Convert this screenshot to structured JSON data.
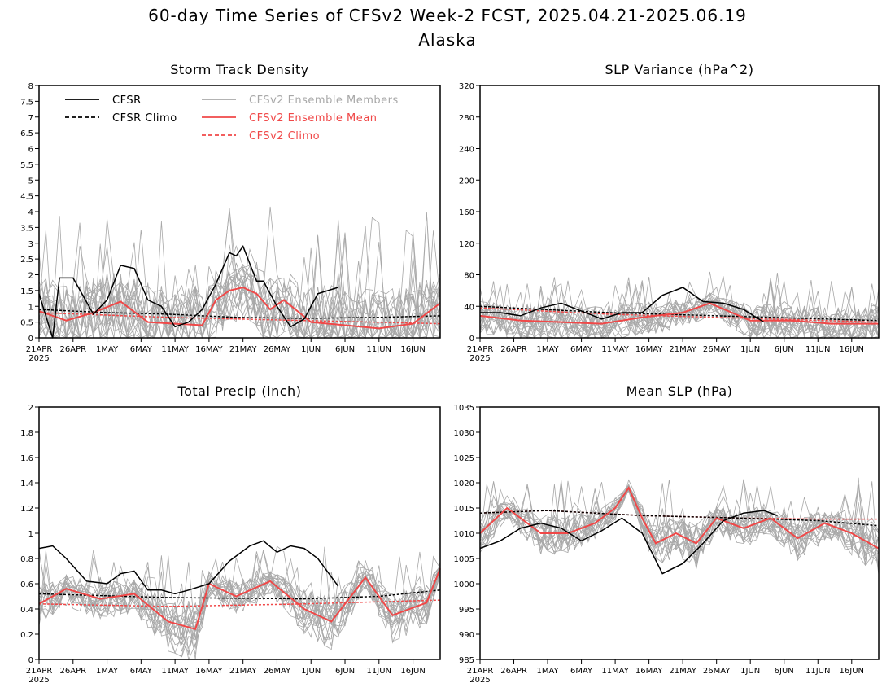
{
  "title": "60-day Time Series of CFSv2 Week-2 FCST, 2025.04.21-2025.06.19",
  "subtitle": "Alaska",
  "colors": {
    "cfsr": "#000000",
    "members": "#a8a8a8",
    "ens_mean": "#f04848",
    "cfsv2_climo": "#f04848"
  },
  "legend": {
    "cfsr": "CFSR",
    "cfsr_climo": "CFSR Climo",
    "members": "CFSv2 Ensemble Members",
    "ens_mean": "CFSv2 Ensemble Mean",
    "cfsv2_climo": "CFSv2 Climo"
  },
  "x_tick_labels": [
    "21APR",
    "26APR",
    "1MAY",
    "6MAY",
    "11MAY",
    "16MAY",
    "21MAY",
    "26MAY",
    "1JUN",
    "6JUN",
    "11JUN",
    "16JUN"
  ],
  "x_year_label": "2025",
  "chart_data": [
    {
      "type": "line",
      "title": "Storm Track Density",
      "ylim": [
        0,
        8
      ],
      "yticks": [
        "0",
        "0.5",
        "1",
        "1.5",
        "2",
        "2.5",
        "3",
        "3.5",
        "4",
        "4.5",
        "5",
        "5.5",
        "6",
        "6.5",
        "7",
        "7.5",
        "8"
      ],
      "x": [
        "04-21",
        "04-23",
        "04-24",
        "04-26",
        "04-29",
        "05-01",
        "05-03",
        "05-05",
        "05-07",
        "05-09",
        "05-11",
        "05-13",
        "05-15",
        "05-17",
        "05-18",
        "05-19",
        "05-20",
        "05-21",
        "05-23",
        "05-24",
        "05-26",
        "05-28",
        "05-30",
        "06-01",
        "06-04"
      ],
      "cfsr": [
        1.4,
        0.0,
        1.9,
        1.9,
        0.75,
        1.2,
        2.3,
        2.2,
        1.2,
        1.0,
        0.35,
        0.5,
        0.9,
        1.7,
        2.2,
        2.7,
        2.6,
        2.9,
        1.8,
        1.8,
        1.0,
        0.35,
        0.6,
        1.4,
        1.6
      ],
      "cfsr_climo": {
        "x": [
          "04-21",
          "05-01",
          "05-10",
          "05-20",
          "05-30",
          "06-10",
          "06-19"
        ],
        "y": [
          0.9,
          0.8,
          0.75,
          0.65,
          0.62,
          0.65,
          0.7
        ]
      },
      "cfsv2_climo": {
        "x": [
          "04-21",
          "05-10",
          "05-30",
          "06-19"
        ],
        "y": [
          0.8,
          0.65,
          0.55,
          0.45
        ]
      },
      "ens_mean": {
        "x": [
          "04-21",
          "04-25",
          "04-29",
          "05-03",
          "05-07",
          "05-11",
          "05-15",
          "05-17",
          "05-19",
          "05-21",
          "05-23",
          "05-25",
          "05-27",
          "05-31",
          "06-05",
          "06-10",
          "06-15",
          "06-19"
        ],
        "y": [
          0.85,
          0.55,
          0.8,
          1.15,
          0.5,
          0.45,
          0.4,
          1.2,
          1.5,
          1.6,
          1.4,
          0.9,
          1.2,
          0.5,
          0.4,
          0.3,
          0.45,
          1.1
        ]
      },
      "members": {
        "count": 20,
        "peak_max": 4.2
      }
    },
    {
      "type": "line",
      "title": "SLP Variance (hPa^2)",
      "ylim": [
        0,
        320
      ],
      "yticks": [
        "0",
        "40",
        "80",
        "120",
        "160",
        "200",
        "240",
        "280",
        "320"
      ],
      "x": [
        "04-21",
        "04-24",
        "04-27",
        "04-30",
        "05-03",
        "05-06",
        "05-09",
        "05-12",
        "05-15",
        "05-18",
        "05-21",
        "05-24",
        "05-27",
        "05-30",
        "06-02"
      ],
      "cfsr": [
        32,
        32,
        28,
        38,
        44,
        34,
        24,
        32,
        32,
        54,
        64,
        46,
        44,
        36,
        20
      ],
      "cfsr_climo": {
        "x": [
          "04-21",
          "05-10",
          "05-30",
          "06-19"
        ],
        "y": [
          40,
          32,
          27,
          22
        ]
      },
      "cfsv2_climo": {
        "x": [
          "04-21",
          "05-10",
          "05-30",
          "06-19"
        ],
        "y": [
          38,
          30,
          25,
          20
        ]
      },
      "ens_mean": {
        "x": [
          "04-21",
          "04-27",
          "05-03",
          "05-09",
          "05-15",
          "05-21",
          "05-25",
          "05-31",
          "06-06",
          "06-12",
          "06-19"
        ],
        "y": [
          28,
          22,
          20,
          18,
          26,
          32,
          44,
          22,
          22,
          18,
          18
        ]
      },
      "members": {
        "count": 20,
        "peak_max": 84
      }
    },
    {
      "type": "line",
      "title": "Total Precip (inch)",
      "ylim": [
        0,
        2
      ],
      "yticks": [
        "0",
        "0.2",
        "0.4",
        "0.6",
        "0.8",
        "1",
        "1.2",
        "1.4",
        "1.6",
        "1.8",
        "2"
      ],
      "x": [
        "04-21",
        "04-23",
        "04-25",
        "04-28",
        "05-01",
        "05-03",
        "05-05",
        "05-07",
        "05-09",
        "05-11",
        "05-13",
        "05-16",
        "05-19",
        "05-22",
        "05-24",
        "05-26",
        "05-28",
        "05-30",
        "06-01",
        "06-04"
      ],
      "cfsr": [
        0.88,
        0.9,
        0.8,
        0.62,
        0.6,
        0.68,
        0.7,
        0.55,
        0.55,
        0.52,
        0.55,
        0.6,
        0.78,
        0.9,
        0.94,
        0.85,
        0.9,
        0.88,
        0.8,
        0.58
      ],
      "cfsr_climo": {
        "x": [
          "04-21",
          "05-10",
          "05-30",
          "06-10",
          "06-19"
        ],
        "y": [
          0.52,
          0.49,
          0.48,
          0.5,
          0.55
        ]
      },
      "cfsv2_climo": {
        "x": [
          "04-21",
          "05-10",
          "05-30",
          "06-19"
        ],
        "y": [
          0.44,
          0.42,
          0.44,
          0.47
        ]
      },
      "ens_mean": {
        "x": [
          "04-21",
          "04-25",
          "04-30",
          "05-05",
          "05-10",
          "05-14",
          "05-16",
          "05-20",
          "05-25",
          "05-30",
          "06-03",
          "06-08",
          "06-12",
          "06-17",
          "06-19"
        ],
        "y": [
          0.44,
          0.56,
          0.48,
          0.52,
          0.3,
          0.24,
          0.6,
          0.5,
          0.62,
          0.4,
          0.3,
          0.65,
          0.35,
          0.45,
          0.72
        ]
      },
      "members": {
        "count": 20,
        "peak_max": 0.9
      }
    },
    {
      "type": "line",
      "title": "Mean SLP (hPa)",
      "ylim": [
        985,
        1035
      ],
      "yticks": [
        "985",
        "990",
        "995",
        "1000",
        "1005",
        "1010",
        "1015",
        "1020",
        "1025",
        "1030",
        "1035"
      ],
      "x": [
        "04-21",
        "04-24",
        "04-27",
        "04-30",
        "05-03",
        "05-06",
        "05-09",
        "05-12",
        "05-15",
        "05-18",
        "05-21",
        "05-24",
        "05-27",
        "05-30",
        "06-02",
        "06-04"
      ],
      "cfsr": [
        1007,
        1008.5,
        1011,
        1012,
        1011,
        1008.5,
        1010.5,
        1013,
        1010,
        1002,
        1004,
        1008,
        1012.5,
        1014,
        1014.5,
        1013.5
      ],
      "cfsr_climo": {
        "x": [
          "04-21",
          "05-01",
          "05-15",
          "05-30",
          "06-10",
          "06-19"
        ],
        "y": [
          1014,
          1014.5,
          1013.5,
          1013,
          1012.5,
          1011.5
        ]
      },
      "cfsv2_climo": {
        "x": [
          "04-21",
          "05-01",
          "05-15",
          "05-30",
          "06-10",
          "06-19"
        ],
        "y": [
          1014,
          1014.5,
          1013.5,
          1013,
          1012.8,
          1012.8
        ]
      },
      "ens_mean": {
        "x": [
          "04-21",
          "04-25",
          "04-30",
          "05-04",
          "05-08",
          "05-11",
          "05-13",
          "05-15",
          "05-17",
          "05-20",
          "05-23",
          "05-26",
          "05-30",
          "06-03",
          "06-07",
          "06-11",
          "06-15",
          "06-19"
        ],
        "y": [
          1010,
          1015,
          1010,
          1010,
          1012,
          1015,
          1019,
          1013,
          1008,
          1010,
          1008,
          1013,
          1011,
          1013,
          1009,
          1012,
          1010,
          1007
        ]
      },
      "members": {
        "count": 20,
        "peak_max": 1021
      }
    }
  ]
}
